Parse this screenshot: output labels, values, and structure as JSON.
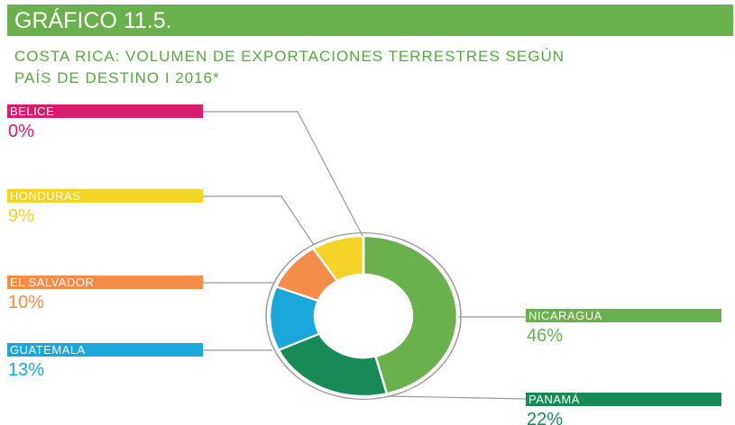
{
  "header": "GRÁFICO 11.5.",
  "chart_data": {
    "type": "donut",
    "title": [
      "COSTA RICA: VOLUMEN DE EXPORTACIONES TERRESTRES SEGÚN",
      "PAÍS DE DESTINO I 2016*"
    ],
    "categories": [
      "NICARAGUA",
      "PANAMÁ",
      "GUATEMALA",
      "EL SALVADOR",
      "HONDURAS",
      "BELICE"
    ],
    "values": [
      46,
      22,
      13,
      10,
      9,
      0
    ],
    "value_labels": [
      "46%",
      "22%",
      "13%",
      "10%",
      "9%",
      "0%"
    ],
    "colors": [
      "#6ab04c",
      "#178a58",
      "#1aa7d9",
      "#f58d4a",
      "#f5d327",
      "#d81b6b"
    ]
  }
}
